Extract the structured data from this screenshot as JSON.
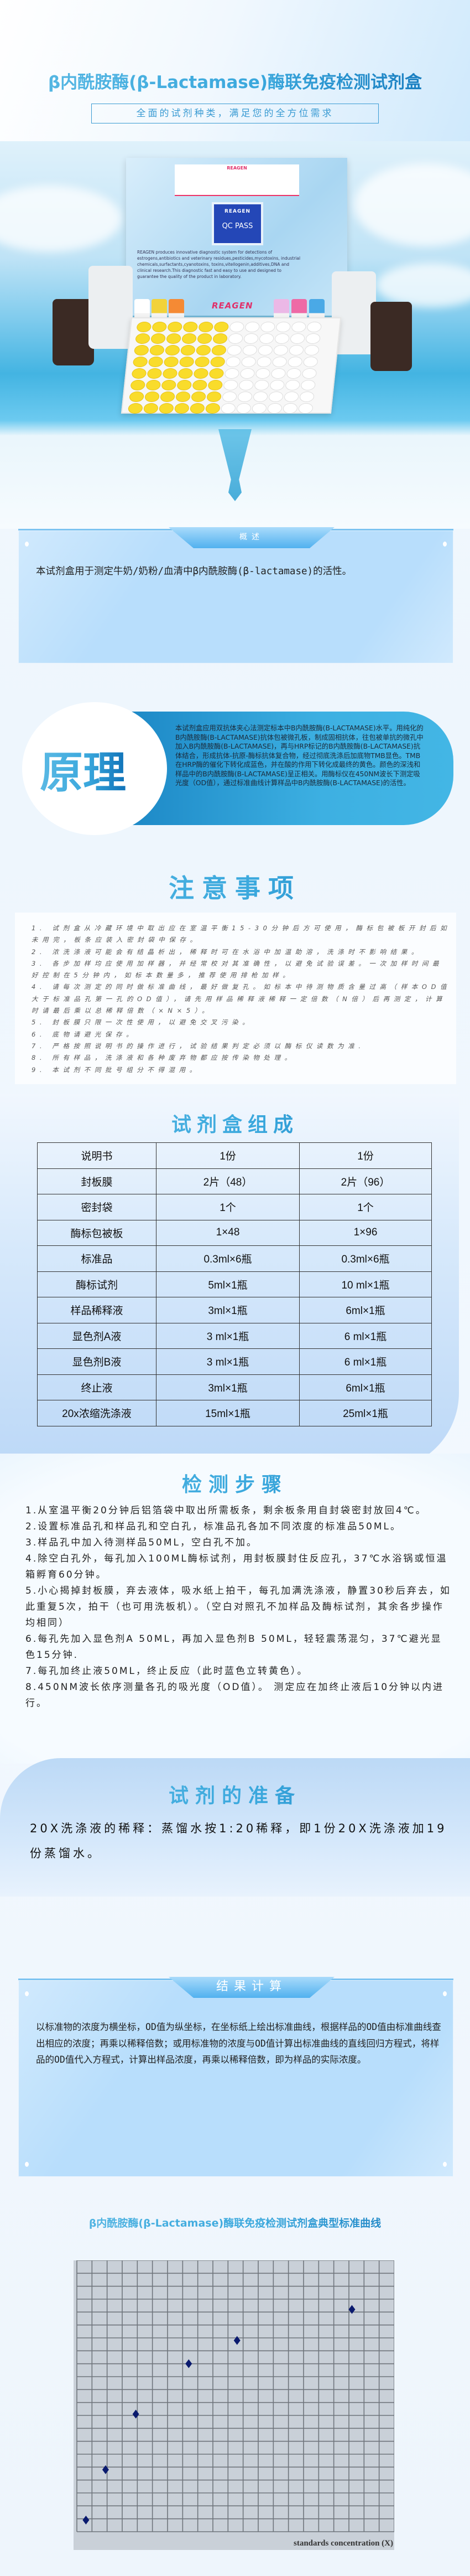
{
  "header": {
    "title": "β内酰胺酶(β-Lactamase)酶联免疫检测试剂盒",
    "subtitle": "全面的试剂种类，满足您的全方位需求"
  },
  "hero": {
    "brand": "REAGEN",
    "qc_badge_brand": "REAGEN",
    "qc_badge_text": "QC PASS",
    "box_description": "REAGEN produces innovative diagnostic system for detections of estrogens,antibiotics and veterinary residues,pesticides,mycotoxins, industrial chemicals,surfactants,cyanotoxins, toxins,vitellogenin,additives,DNA and clinical research.This diagnostic fast and easy to use and designed to guarantee the quality of the product in laboratory."
  },
  "overview": {
    "tab_label": "概述",
    "text": "本试剂盒用于测定牛奶/奶粉/血清中β内酰胺酶(β-lactamase)的活性。"
  },
  "principle": {
    "title": "原理",
    "text": "本试剂盒应用双抗体夹心法测定标本中B内酰胺酶(B-LACTAMASE)水平。用纯化的B内酰胺酶(B-LACTAMASE)抗体包被微孔板，制成固相抗体，往包被单抗的微孔中加入B内酰胺酶(B-LACTAMASE)，再与HRP标记的B内酰胺酶(B-LACTAMASE)抗体结合，形成抗体-抗原-酶标抗体复合物，经过彻底洗涤后加底物TMB显色。TMB在HRP酶的催化下转化成蓝色，并在酸的作用下转化成最终的黄色。颜色的深浅和样品中的B内酰胺酶(B-LACTAMASE)呈正相关。用酶标仪在450NM波长下测定吸光度（OD值），通过标准曲线计算样品中B内酰胺酶(B-LACTAMASE)的活性。"
  },
  "notes": {
    "title": "注意事项",
    "items": [
      "1. 试剂盒从冷藏环境中取出应在室温平衡15-30分钟后方可使用，酶标包被板开封后如未用完，板条应装入密封袋中保存。",
      "2. 浓洗涤液可能会有结晶析出，稀释时可在水浴中加温助溶，洗涤时不影响结果。",
      "3. 各步加样均应使用加样器，并经常校对其准确性，以避免试验误差。一次加样时间最好控制在5分钟内，如标本数量多，推荐使用排枪加样。",
      "4. 请每次测定的同时做标准曲线，最好做复孔。如标本中待测物质含量过高（样本OD值大于标准品孔第一孔的OD值），请先用样品稀释液稀释一定倍数（N倍）后再测定，计算时请最后乘以总稀释倍数（×N×5）。",
      "5. 封板膜只限一次性使用，以避免交叉污染。",
      "6. 底物请避光保存。",
      "7. 严格按照说明书的操作进行，试验结果判定必须以酶标仪读数为准.",
      "8. 所有样品，洗涤液和各种废弃物都应按传染物处理。",
      "9. 本试剂不同批号组分不得混用。"
    ]
  },
  "kit": {
    "title": "试剂盒组成",
    "rows": [
      [
        "说明书",
        "1份",
        "1份"
      ],
      [
        "封板膜",
        "2片（48）",
        "2片（96）"
      ],
      [
        "密封袋",
        "1个",
        "1个"
      ],
      [
        "酶标包被板",
        "1×48",
        "1×96"
      ],
      [
        "标准品",
        "0.3ml×6瓶",
        "0.3ml×6瓶"
      ],
      [
        "酶标试剂",
        "5ml×1瓶",
        "10 ml×1瓶"
      ],
      [
        "样品稀释液",
        "3ml×1瓶",
        "6ml×1瓶"
      ],
      [
        "显色剂A液",
        "3 ml×1瓶",
        "6 ml×1瓶"
      ],
      [
        "显色剂B液",
        "3 ml×1瓶",
        "6 ml×1瓶"
      ],
      [
        "终止液",
        "3ml×1瓶",
        "6ml×1瓶"
      ],
      [
        "20x浓缩洗涤液",
        "15ml×1瓶",
        "25ml×1瓶"
      ]
    ]
  },
  "steps": {
    "title": "检测步骤",
    "items": [
      "1.从室温平衡20分钟后铝箔袋中取出所需板条，剩余板条用自封袋密封放回4℃。",
      "2.设置标准品孔和样品孔和空白孔，标准品孔各加不同浓度的标准品50ML。",
      "3.样品孔中加入待测样品50ML，空白孔不加。",
      "4.除空白孔外，每孔加入100ML酶标试剂，用封板膜封住反应孔，37℃水浴锅或恒温箱孵育60分钟。",
      "5.小心揭掉封板膜，弃去液体，吸水纸上拍干，每孔加满洗涤液，静置30秒后弃去，如此重复5次，拍干（也可用洗板机）。（空白对照孔不加样品及酶标试剂，其余各步操作均相同）",
      "6.每孔先加入显色剂A 50ML，再加入显色剂B 50ML，轻轻震荡混匀，37℃避光显色15分钟.",
      "7.每孔加终止液50ML，终止反应（此时蓝色立转黄色）。",
      "8.450NM波长依序测量各孔的吸光度（OD值）。 测定应在加终止液后10分钟以内进行。"
    ]
  },
  "preparation": {
    "title": "试剂的准备",
    "text": "20X洗涤液的稀释：蒸馏水按1:20稀释，即1份20X洗涤液加19份蒸馏水。"
  },
  "result": {
    "tab_label": "结果计算",
    "text": "以标准物的浓度为横坐标，OD值为纵坐标，在坐标纸上绘出标准曲线，根据样品的OD值由标准曲线查出相应的浓度；再乘以稀释倍数；或用标准物的浓度与OD值计算出标准曲线的直线回归方程式，将样品的OD值代入方程式，计算出样品浓度，再乘以稀释倍数，即为样品的实际浓度。"
  },
  "chart_data": {
    "type": "scatter",
    "title": "β内酰胺酶(β-Lactamase)酶联免疫检测试剂盒典型标准曲线",
    "xlabel": "standards concentration (X)",
    "ylabel": "",
    "x": [
      0.6,
      1.9,
      3.9,
      7.4,
      10.6,
      18.2
    ],
    "y": [
      0.9,
      4.8,
      9.1,
      13.0,
      14.8,
      17.2
    ],
    "xlim": [
      0,
      21
    ],
    "ylim": [
      0,
      21
    ],
    "grid": true,
    "marker": "diamond",
    "marker_color": "#0a1a6e",
    "background_color": "#c9d0d8"
  },
  "colors": {
    "title_light": "#5ab9e4",
    "title_dark": "#0f72b8",
    "panel_blue": "#b8defc",
    "principle_band": "#3db0e2"
  }
}
